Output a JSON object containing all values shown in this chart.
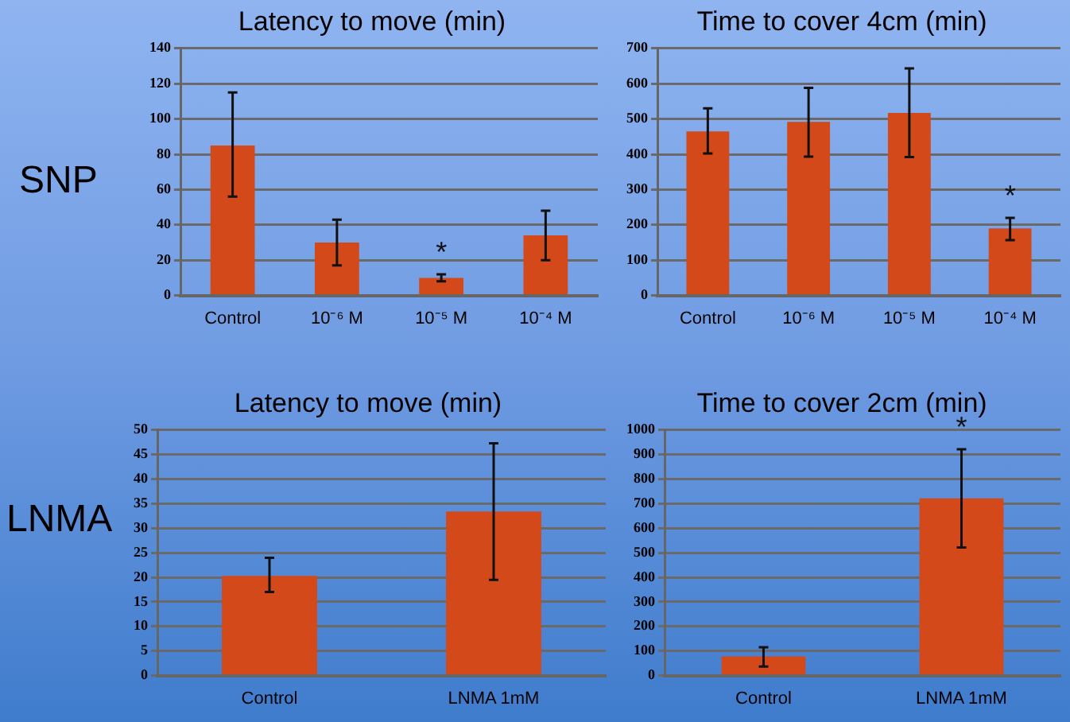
{
  "chart_data": [
    {
      "type": "bar",
      "title": "Latency to move (min)",
      "categories": [
        "Control",
        "10⁻⁶ M",
        "10⁻⁵ M",
        "10⁻⁴ M"
      ],
      "values": [
        85,
        30,
        10,
        34
      ],
      "color": "#d4491a",
      "errors": [
        [
          56,
          115
        ],
        [
          17,
          43
        ],
        [
          8,
          12
        ],
        [
          20,
          48
        ]
      ],
      "ylim": [
        0,
        140
      ],
      "yticks": [
        0,
        20,
        40,
        60,
        80,
        100,
        120,
        140
      ],
      "grid": "y",
      "legend": false,
      "annotations": [
        "SNP",
        {
          "text": "*",
          "x": "10⁻⁵ M",
          "y": 12
        }
      ]
    },
    {
      "type": "bar",
      "title": "Time to cover 4cm (min)",
      "categories": [
        "Control",
        "10⁻⁶ M",
        "10⁻⁵ M",
        "10⁻⁴ M"
      ],
      "values": [
        465,
        492,
        517,
        190
      ],
      "color": "#d4491a",
      "errors": [
        [
          402,
          530
        ],
        [
          393,
          588
        ],
        [
          392,
          643
        ],
        [
          157,
          220
        ]
      ],
      "ylim": [
        0,
        700
      ],
      "yticks": [
        0,
        100,
        200,
        300,
        400,
        500,
        600,
        700
      ],
      "grid": "y",
      "legend": false,
      "annotations": [
        {
          "text": "*",
          "x": "10⁻⁴ M",
          "y": 220
        }
      ]
    },
    {
      "type": "bar",
      "title": "Latency to move (min)",
      "categories": [
        "Control",
        "LNMA 1mM"
      ],
      "values": [
        20.3,
        33.4
      ],
      "color": "#d4491a",
      "errors": [
        [
          17,
          24
        ],
        [
          19.5,
          47.3
        ]
      ],
      "ylim": [
        0,
        50
      ],
      "yticks": [
        0,
        5,
        10,
        15,
        20,
        25,
        30,
        35,
        40,
        45,
        50
      ],
      "grid": "y",
      "legend": false,
      "annotations": [
        "LNMA"
      ]
    },
    {
      "type": "bar",
      "title": "Time to cover 2cm (min)",
      "categories": [
        "Control",
        "LNMA 1mM"
      ],
      "values": [
        78,
        722
      ],
      "color": "#d4491a",
      "errors": [
        [
          37,
          115
        ],
        [
          522,
          922
        ]
      ],
      "ylim": [
        0,
        1000
      ],
      "yticks": [
        0,
        100,
        200,
        300,
        400,
        500,
        600,
        700,
        800,
        900,
        1000
      ],
      "grid": "y",
      "legend": false,
      "annotations": [
        {
          "text": "*",
          "x": "LNMA 1mM",
          "y": 922
        }
      ]
    }
  ]
}
